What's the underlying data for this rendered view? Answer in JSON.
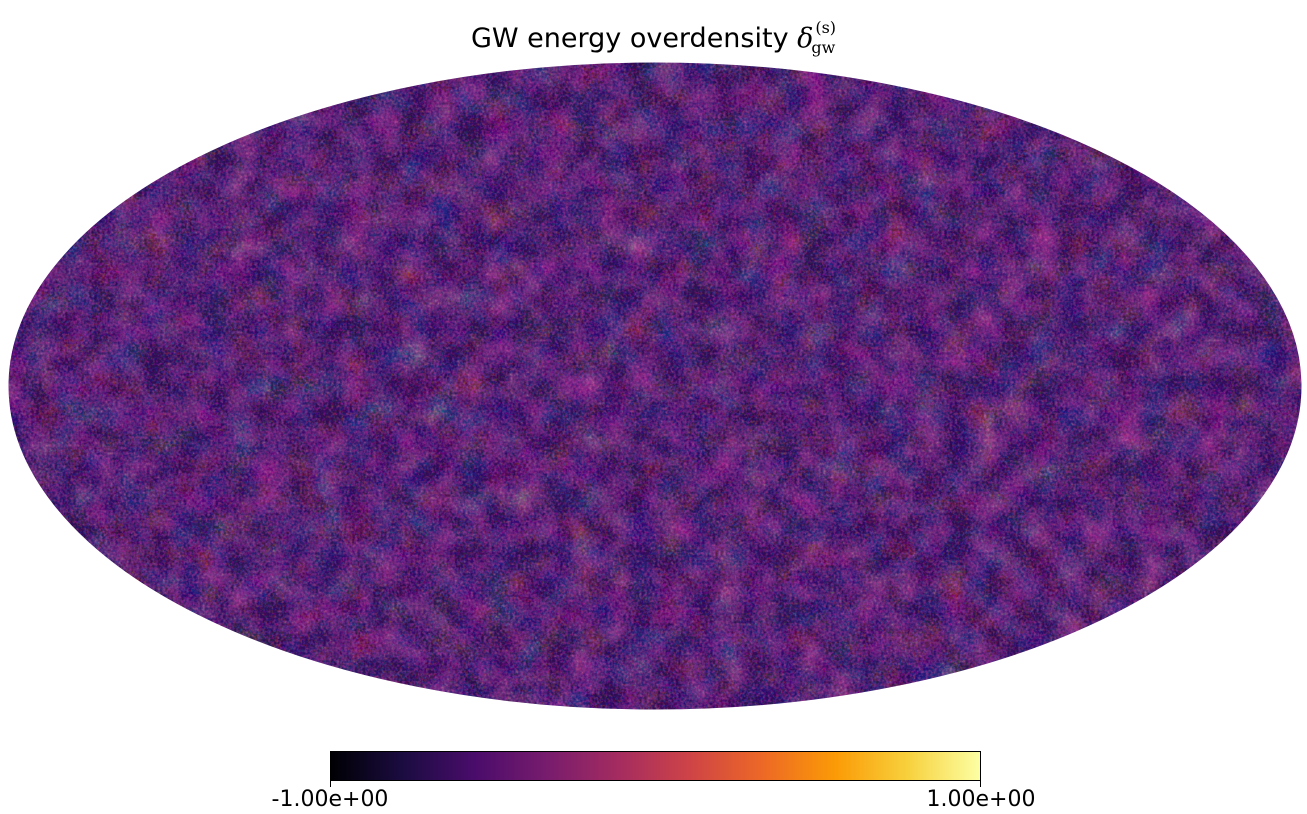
{
  "title": {
    "text": "GW energy overdensity ",
    "symbol": "δ",
    "subscript": "gw",
    "superscript": "(s)"
  },
  "map": {
    "projection": "mollweide",
    "colormap": "inferno",
    "background": "#ffffff"
  },
  "colorbar": {
    "min_label": "-1.00e+00",
    "max_label": "1.00e+00",
    "min": -1.0,
    "max": 1.0,
    "colors": [
      "#000004",
      "#1b0c41",
      "#4a0c6b",
      "#781c6d",
      "#a52c60",
      "#cf4446",
      "#ed6925",
      "#fb9b06",
      "#f7d13d",
      "#fcffa4"
    ]
  }
}
